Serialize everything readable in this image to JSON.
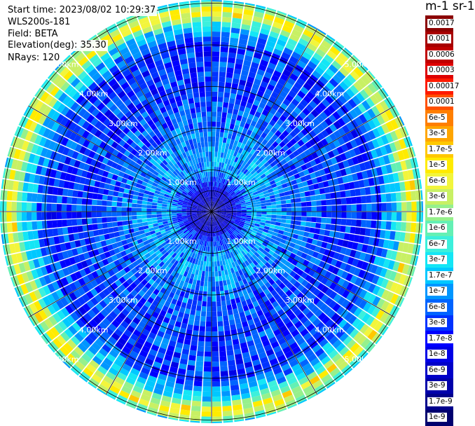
{
  "info": {
    "start_time": "Start time: 2023/08/02 10:29:37",
    "instrument": "WLS200s-181",
    "field": "Field: BETA",
    "elevation": "Elevation(deg): 35.30",
    "nrays": "NRays: 120"
  },
  "colorbar": {
    "title": "m-1 sr-1",
    "labels": [
      "0.0017",
      "0.001",
      "0.0006",
      "0.0003",
      "0.00017",
      "0.0001",
      "6e-5",
      "3e-5",
      "1.7e-5",
      "1e-5",
      "6e-6",
      "3e-6",
      "1.7e-6",
      "1e-6",
      "6e-7",
      "3e-7",
      "1.7e-7",
      "1e-7",
      "6e-8",
      "3e-8",
      "1.7e-8",
      "1e-8",
      "6e-9",
      "3e-9",
      "1.7e-9",
      "1e-9"
    ],
    "colors": [
      "#8b0000",
      "#a80000",
      "#c00000",
      "#de0000",
      "#ff1a00",
      "#ff5000",
      "#ff7f00",
      "#ffa500",
      "#ffc800",
      "#ffeb00",
      "#f2f53c",
      "#c8f064",
      "#96f08c",
      "#64f0b4",
      "#3cf0dc",
      "#14e6f5",
      "#00c8ff",
      "#0096ff",
      "#0064ff",
      "#0032ff",
      "#0000ff",
      "#0000e6",
      "#0000c8",
      "#0000aa",
      "#00008c",
      "#00006e"
    ]
  },
  "range_labels": [
    "1.00km",
    "2.00km",
    "3.00km",
    "4.00km",
    "5.00km"
  ],
  "chart_data": {
    "type": "heatmap",
    "projection": "polar PPI scan",
    "title": "",
    "field": "BETA",
    "units": "m-1 sr-1",
    "elevation_deg": 35.3,
    "n_rays": 120,
    "range_rings_km": [
      1,
      2,
      3,
      4,
      5
    ],
    "color_scale": "log",
    "value_range": [
      1e-09,
      0.0017
    ],
    "radial_profile": [
      {
        "range_km": 0.2,
        "typical_value": 3e-09
      },
      {
        "range_km": 0.5,
        "typical_value": 1e-08
      },
      {
        "range_km": 1.0,
        "typical_value": 1e-07
      },
      {
        "range_km": 1.5,
        "typical_value": 1e-07
      },
      {
        "range_km": 2.0,
        "typical_value": 6e-08
      },
      {
        "range_km": 3.0,
        "typical_value": 3e-08
      },
      {
        "range_km": 4.0,
        "typical_value": 3e-08
      },
      {
        "range_km": 4.5,
        "typical_value": 3e-07
      },
      {
        "range_km": 4.8,
        "typical_value": 1e-05
      },
      {
        "range_km": 5.2,
        "typical_value": 1e-07
      }
    ]
  }
}
